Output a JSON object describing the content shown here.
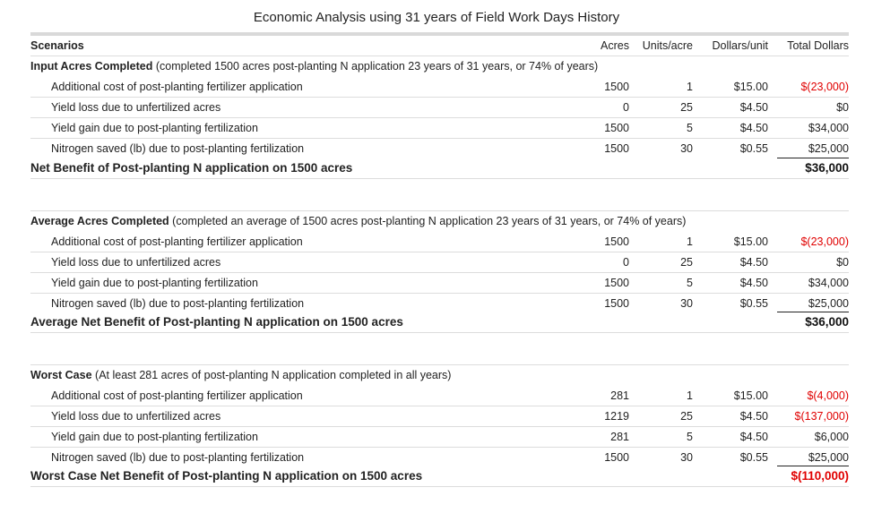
{
  "title": "Economic Analysis using 31 years of Field Work Days History",
  "headers": {
    "scenarios": "Scenarios",
    "acres": "Acres",
    "units_per_acre": "Units/acre",
    "dollars_per_unit": "Dollars/unit",
    "total_dollars": "Total Dollars"
  },
  "sections": [
    {
      "title": "Input Acres Completed",
      "note": "(completed 1500 acres post-planting N application 23 years of 31 years, or 74% of years)",
      "rows": [
        {
          "label": "Additional cost of post-planting fertilizer application",
          "acres": "1500",
          "units": "1",
          "dpu": "$15.00",
          "total": "$(23,000)",
          "negative": true
        },
        {
          "label": "Yield loss due to unfertilized acres",
          "acres": "0",
          "units": "25",
          "dpu": "$4.50",
          "total": "$0",
          "negative": false
        },
        {
          "label": "Yield gain due to post-planting fertilization",
          "acres": "1500",
          "units": "5",
          "dpu": "$4.50",
          "total": "$34,000",
          "negative": false
        },
        {
          "label": "Nitrogen saved (lb) due to post-planting fertilization",
          "acres": "1500",
          "units": "30",
          "dpu": "$0.55",
          "total": "$25,000",
          "negative": false
        }
      ],
      "net_label": "Net Benefit of Post-planting N application on 1500 acres",
      "net_total": "$36,000",
      "net_negative": false
    },
    {
      "title": "Average Acres Completed",
      "note": "(completed an average of 1500 acres post-planting N application 23 years of 31 years, or 74% of years)",
      "rows": [
        {
          "label": "Additional cost of post-planting fertilizer application",
          "acres": "1500",
          "units": "1",
          "dpu": "$15.00",
          "total": "$(23,000)",
          "negative": true
        },
        {
          "label": "Yield loss due to unfertilized acres",
          "acres": "0",
          "units": "25",
          "dpu": "$4.50",
          "total": "$0",
          "negative": false
        },
        {
          "label": "Yield gain due to post-planting fertilization",
          "acres": "1500",
          "units": "5",
          "dpu": "$4.50",
          "total": "$34,000",
          "negative": false
        },
        {
          "label": "Nitrogen saved (lb) due to post-planting fertilization",
          "acres": "1500",
          "units": "30",
          "dpu": "$0.55",
          "total": "$25,000",
          "negative": false
        }
      ],
      "net_label": "Average Net Benefit of Post-planting N application on 1500 acres",
      "net_total": "$36,000",
      "net_negative": false
    },
    {
      "title": "Worst Case",
      "note": "(At least 281 acres of post-planting N application completed in all years)",
      "rows": [
        {
          "label": "Additional cost of post-planting fertilizer application",
          "acres": "281",
          "units": "1",
          "dpu": "$15.00",
          "total": "$(4,000)",
          "negative": true
        },
        {
          "label": "Yield loss due to unfertilized acres",
          "acres": "1219",
          "units": "25",
          "dpu": "$4.50",
          "total": "$(137,000)",
          "negative": true
        },
        {
          "label": "Yield gain due to post-planting fertilization",
          "acres": "281",
          "units": "5",
          "dpu": "$4.50",
          "total": "$6,000",
          "negative": false
        },
        {
          "label": "Nitrogen saved (lb) due to post-planting fertilization",
          "acres": "1500",
          "units": "30",
          "dpu": "$0.55",
          "total": "$25,000",
          "negative": false
        }
      ],
      "net_label": "Worst Case Net Benefit of Post-planting N application on 1500 acres",
      "net_total": "$(110,000)",
      "net_negative": true
    }
  ],
  "colors": {
    "negative": "#e00000",
    "rule": "#dcdcdc",
    "topbar": "#d9d9d9"
  }
}
